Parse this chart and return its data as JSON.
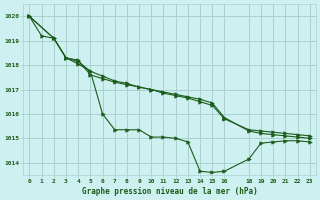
{
  "background_color": "#cff0f0",
  "grid_color": "#aacfcf",
  "line_color": "#1a5c1a",
  "title": "Graphe pression niveau de la mer (hPa)",
  "ylim": [
    1013.5,
    1020.5
  ],
  "xlim": [
    -0.5,
    23.5
  ],
  "yticks": [
    1014,
    1015,
    1016,
    1017,
    1018,
    1019,
    1020
  ],
  "xtick_positions": [
    0,
    1,
    2,
    3,
    4,
    5,
    6,
    7,
    8,
    9,
    10,
    11,
    12,
    13,
    14,
    15,
    16,
    18,
    19,
    20,
    21,
    22,
    23
  ],
  "xtick_labels": [
    "0",
    "1",
    "2",
    "3",
    "4",
    "5",
    "6",
    "7",
    "8",
    "9",
    "10",
    "11",
    "12",
    "13",
    "14",
    "15",
    "16",
    "18",
    "19",
    "20",
    "21",
    "22",
    "23"
  ],
  "series1_x": [
    0,
    1,
    2,
    3,
    4,
    5,
    6,
    7,
    8,
    9,
    10,
    11,
    12,
    13,
    14,
    15,
    16,
    18,
    19,
    20,
    21,
    22,
    23
  ],
  "series1_y": [
    1020.0,
    1019.2,
    1019.1,
    1018.3,
    1018.05,
    1017.75,
    1016.0,
    1015.35,
    1015.35,
    1015.35,
    1015.05,
    1015.05,
    1015.0,
    1014.85,
    1013.65,
    1013.6,
    1013.65,
    1014.15,
    1014.8,
    1014.85,
    1014.9,
    1014.9,
    1014.85
  ],
  "series2_x": [
    0,
    2,
    3,
    4,
    5,
    6,
    7,
    8,
    9,
    10,
    11,
    12,
    13,
    14,
    15,
    16,
    18,
    19,
    20,
    21,
    22,
    23
  ],
  "series2_y": [
    1020.0,
    1019.1,
    1018.3,
    1018.15,
    1017.75,
    1017.55,
    1017.35,
    1017.25,
    1017.1,
    1017.0,
    1016.85,
    1016.75,
    1016.65,
    1016.5,
    1016.35,
    1015.8,
    1015.35,
    1015.3,
    1015.25,
    1015.2,
    1015.15,
    1015.1
  ],
  "series3_x": [
    0,
    2,
    3,
    4,
    5,
    6,
    7,
    8,
    9,
    10,
    11,
    12,
    13,
    14,
    15,
    16,
    18,
    19,
    20,
    21,
    22,
    23
  ],
  "series3_y": [
    1020.0,
    1019.1,
    1018.3,
    1018.2,
    1017.6,
    1017.45,
    1017.3,
    1017.2,
    1017.1,
    1017.0,
    1016.9,
    1016.8,
    1016.7,
    1016.6,
    1016.45,
    1015.85,
    1015.3,
    1015.2,
    1015.15,
    1015.1,
    1015.05,
    1015.0
  ]
}
